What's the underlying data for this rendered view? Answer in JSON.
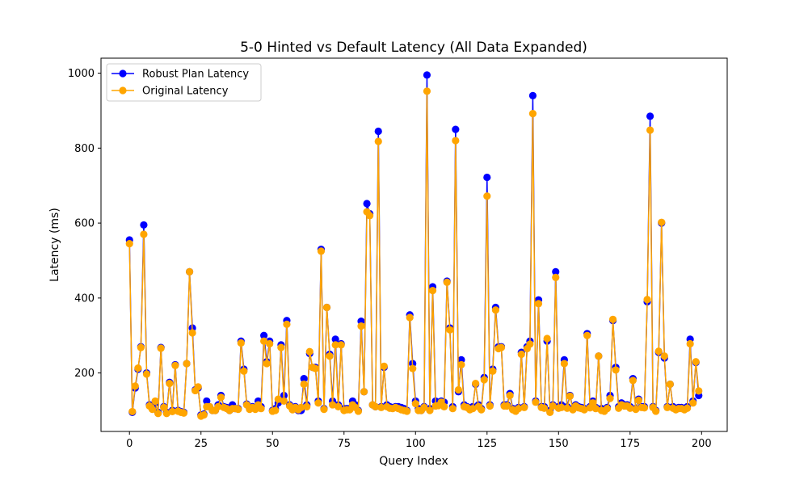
{
  "chart_data": {
    "type": "line",
    "title": "5-0 Hinted vs Default Latency (All Data Expanded)",
    "xlabel": "Query Index",
    "ylabel": "Latency (ms)",
    "xlim": [
      -9.95,
      208.95
    ],
    "ylim": [
      44,
      1040
    ],
    "xticks": [
      0,
      25,
      50,
      75,
      100,
      125,
      150,
      175,
      200
    ],
    "yticks": [
      200,
      400,
      600,
      800,
      1000
    ],
    "grid": false,
    "legend_position": "upper-left",
    "series": [
      {
        "name": "Robust Plan Latency",
        "color": "#0000ff",
        "marker": "circle",
        "values": [
          555,
          95,
          160,
          210,
          270,
          595,
          200,
          115,
          105,
          120,
          95,
          268,
          110,
          95,
          175,
          100,
          222,
          100,
          97,
          95,
          225,
          470,
          320,
          155,
          160,
          88,
          90,
          125,
          110,
          100,
          100,
          115,
          140,
          110,
          108,
          100,
          115,
          105,
          105,
          285,
          210,
          117,
          105,
          110,
          105,
          125,
          110,
          300,
          230,
          285,
          100,
          105,
          120,
          275,
          140,
          340,
          115,
          105,
          110,
          100,
          100,
          185,
          115,
          252,
          215,
          215,
          125,
          530,
          105,
          375,
          250,
          125,
          290,
          115,
          278,
          105,
          105,
          105,
          125,
          115,
          100,
          338,
          150,
          652,
          625,
          115,
          110,
          845,
          110,
          215,
          115,
          110,
          108,
          110,
          110,
          108,
          105,
          100,
          355,
          225,
          125,
          105,
          100,
          110,
          995,
          105,
          430,
          125,
          118,
          125,
          122,
          445,
          320,
          110,
          850,
          150,
          235,
          115,
          110,
          105,
          110,
          170,
          115,
          105,
          188,
          722,
          115,
          210,
          375,
          270,
          270,
          115,
          115,
          145,
          105,
          100,
          108,
          255,
          110,
          270,
          285,
          940,
          125,
          395,
          110,
          110,
          285,
          100,
          115,
          470,
          110,
          115,
          235,
          110,
          140,
          105,
          115,
          110,
          108,
          105,
          305,
          110,
          125,
          108,
          245,
          105,
          100,
          108,
          140,
          340,
          215,
          110,
          120,
          115,
          115,
          110,
          185,
          105,
          130,
          110,
          110,
          390,
          885,
          110,
          100,
          255,
          600,
          240,
          110,
          170,
          110,
          105,
          108,
          108,
          105,
          110,
          290,
          125,
          228,
          140
        ]
      },
      {
        "name": "Original Latency",
        "color": "#ffa500",
        "marker": "circle",
        "values": [
          545,
          97,
          165,
          213,
          268,
          570,
          197,
          112,
          103,
          125,
          92,
          266,
          108,
          92,
          172,
          97,
          220,
          98,
          95,
          93,
          225,
          470,
          307,
          153,
          163,
          85,
          88,
          110,
          110,
          100,
          100,
          110,
          135,
          108,
          105,
          100,
          105,
          105,
          103,
          280,
          205,
          115,
          103,
          108,
          103,
          115,
          105,
          285,
          225,
          278,
          98,
          100,
          130,
          268,
          125,
          330,
          112,
          102,
          108,
          102,
          108,
          170,
          110,
          257,
          215,
          212,
          120,
          525,
          103,
          375,
          245,
          115,
          275,
          110,
          275,
          100,
          102,
          102,
          115,
          108,
          98,
          325,
          150,
          630,
          620,
          115,
          110,
          818,
          108,
          218,
          110,
          106,
          105,
          108,
          105,
          102,
          100,
          98,
          348,
          212,
          118,
          100,
          100,
          108,
          952,
          100,
          420,
          112,
          113,
          122,
          110,
          442,
          315,
          105,
          820,
          155,
          222,
          110,
          108,
          102,
          105,
          172,
          110,
          102,
          182,
          672,
          112,
          205,
          368,
          265,
          268,
          112,
          112,
          140,
          102,
          98,
          105,
          250,
          108,
          265,
          277,
          892,
          122,
          385,
          108,
          106,
          292,
          95,
          112,
          455,
          106,
          108,
          225,
          106,
          138,
          102,
          112,
          107,
          105,
          102,
          300,
          107,
          120,
          105,
          245,
          100,
          98,
          105,
          132,
          343,
          208,
          106,
          115,
          112,
          112,
          106,
          180,
          103,
          127,
          108,
          107,
          396,
          848,
          108,
          98,
          258,
          602,
          245,
          108,
          170,
          106,
          102,
          105,
          105,
          102,
          106,
          278,
          120,
          230,
          152
        ]
      }
    ]
  }
}
